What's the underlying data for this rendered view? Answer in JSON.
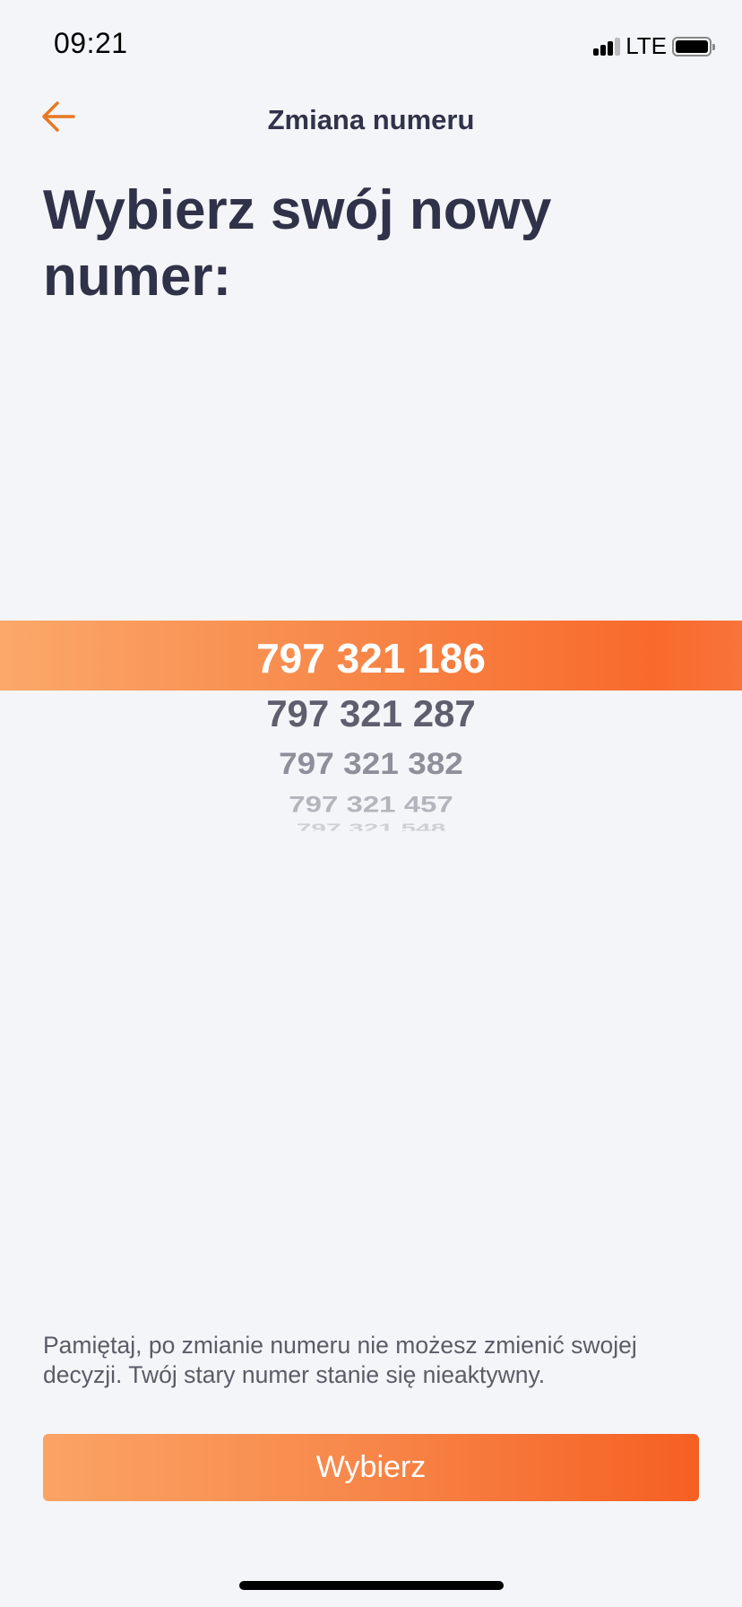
{
  "status_bar": {
    "time": "09:21",
    "network": "LTE",
    "battery_icon": "battery-icon",
    "signal_icon": "signal-icon"
  },
  "header": {
    "title": "Zmiana numeru",
    "back_icon": "arrow-left-icon"
  },
  "heading": "Wybierz swój nowy numer:",
  "picker": {
    "selected_index": 0,
    "numbers": [
      "797 321 186",
      "797 321 287",
      "797 321 382",
      "797 321 457",
      "797 321 548"
    ]
  },
  "note": "Pamiętaj, po zmianie numeru nie możesz zmienić swojej decyzji. Twój stary numer stanie się nieaktywny.",
  "button": {
    "label": "Wybierz"
  },
  "colors": {
    "accent": "#f7894a",
    "accent_dark": "#f65f22",
    "text": "#30334a",
    "background": "#f4f5f8"
  }
}
